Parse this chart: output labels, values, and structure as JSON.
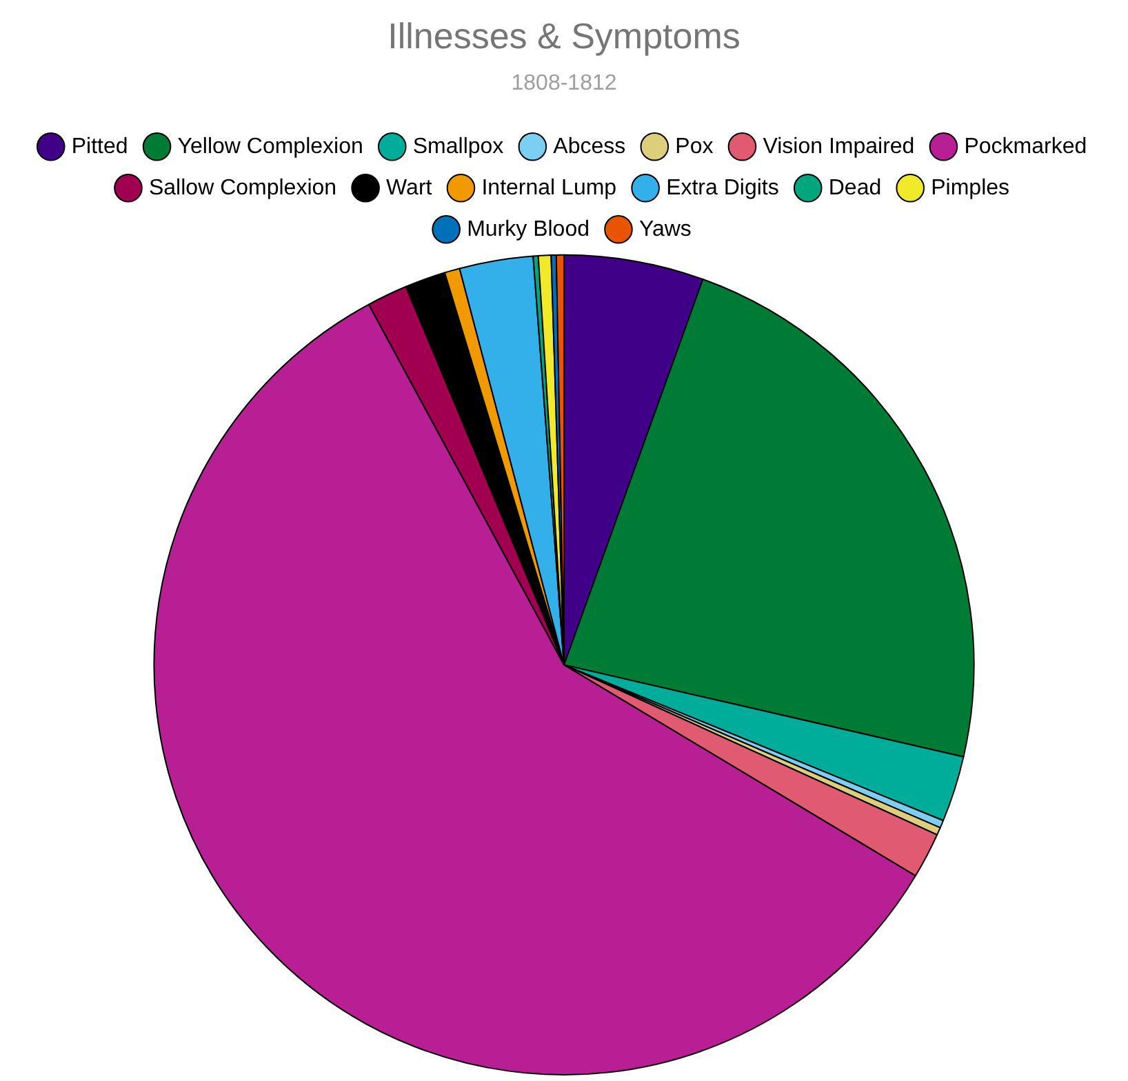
{
  "chart_data": {
    "type": "pie",
    "title": "Illnesses & Symptoms",
    "subtitle": "1808-1812",
    "categories": [
      "Pitted",
      "Yellow Complexion",
      "Smallpox",
      "Abcess",
      "Pox",
      "Vision Impaired",
      "Pockmarked",
      "Sallow Complexion",
      "Wart",
      "Internal Lump",
      "Extra Digits",
      "Dead",
      "Pimples",
      "Murky Blood",
      "Yaws"
    ],
    "values": [
      5.5,
      23.1,
      2.6,
      0.3,
      0.3,
      1.8,
      58.5,
      1.6,
      1.6,
      0.6,
      2.9,
      0.2,
      0.5,
      0.2,
      0.3
    ],
    "colors": [
      "#410088",
      "#007b36",
      "#00ad9a",
      "#7dcef3",
      "#dcce7a",
      "#e05b71",
      "#b81f94",
      "#a0004f",
      "#000000",
      "#f19a00",
      "#33b0ea",
      "#00a77e",
      "#f0ea2a",
      "#0071b8",
      "#e85400"
    ],
    "legend": "top"
  }
}
